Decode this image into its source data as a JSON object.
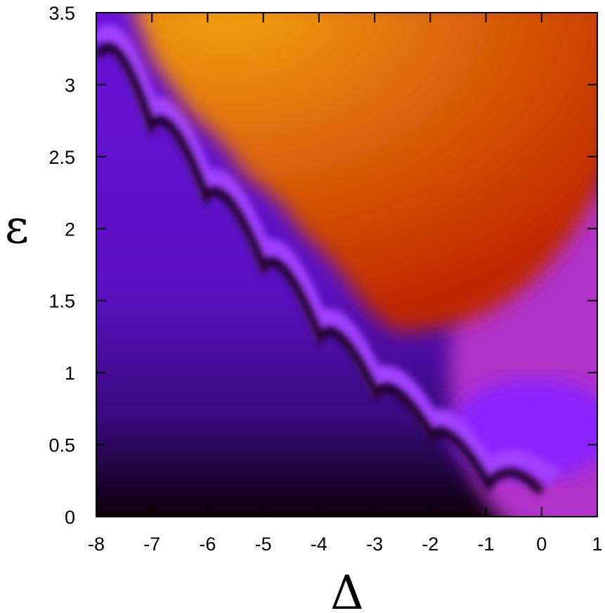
{
  "chart_data": {
    "type": "heatmap",
    "xlabel": "Δ",
    "ylabel": "ε",
    "xlim": [
      -8,
      1
    ],
    "ylim": [
      0,
      3.5
    ],
    "xticks": [
      -8,
      -7,
      -6,
      -5,
      -4,
      -3,
      -2,
      -1,
      0,
      1
    ],
    "yticks": [
      0,
      0.5,
      1,
      1.5,
      2,
      2.5,
      3,
      3.5
    ]
  }
}
